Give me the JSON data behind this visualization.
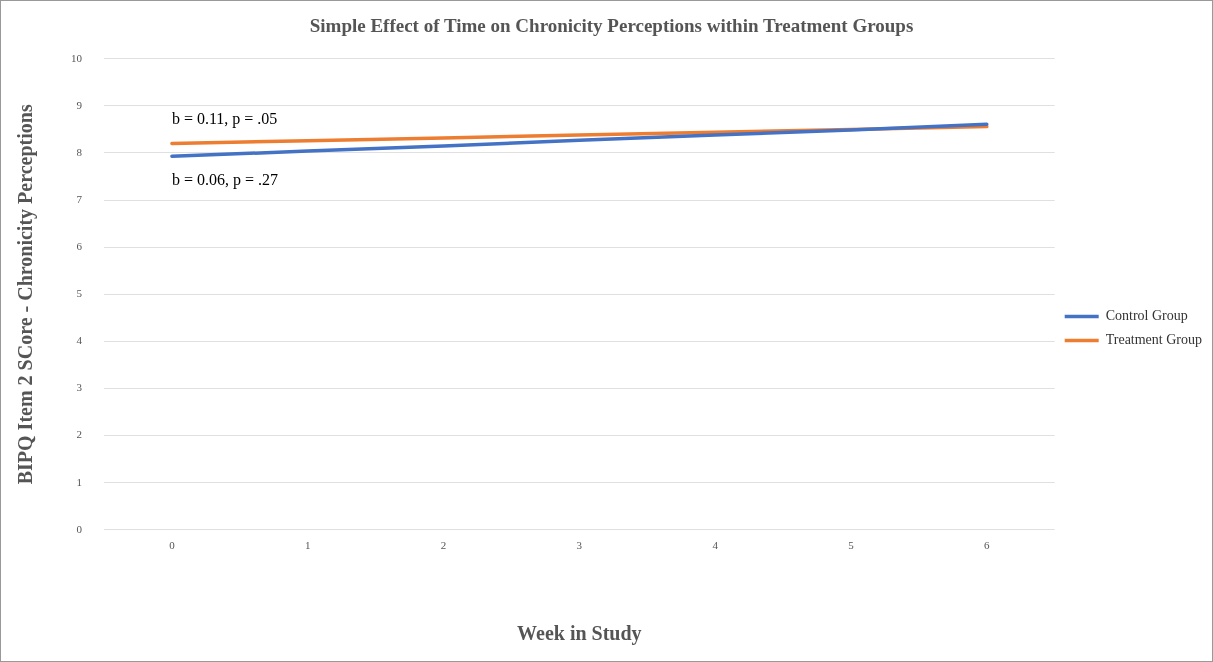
{
  "chart_data": {
    "type": "line",
    "title": "Simple Effect of Time on Chronicity Perceptions within Treatment Groups",
    "xlabel": "Week in Study",
    "ylabel": "BIPQ Item 2 SCore - Chronicity Perceptions",
    "categories": [
      "0",
      "1",
      "2",
      "3",
      "4",
      "5",
      "6"
    ],
    "series": [
      {
        "name": "Control Group",
        "color": "#4472c4",
        "values": [
          7.93,
          8.04,
          8.15,
          8.27,
          8.38,
          8.49,
          8.61
        ]
      },
      {
        "name": "Treatment Group",
        "color": "#ed7d31",
        "values": [
          8.2,
          8.26,
          8.32,
          8.38,
          8.44,
          8.5,
          8.56
        ]
      }
    ],
    "annotations": [
      "b = 0.11, p = .05",
      "b = 0.06, p = .27"
    ],
    "ylim": [
      0,
      10
    ],
    "yticks": [
      0,
      1,
      2,
      3,
      4,
      5,
      6,
      7,
      8,
      9,
      10
    ],
    "grid": "y",
    "legend": "right",
    "marker": "none",
    "line_style": "solid"
  }
}
